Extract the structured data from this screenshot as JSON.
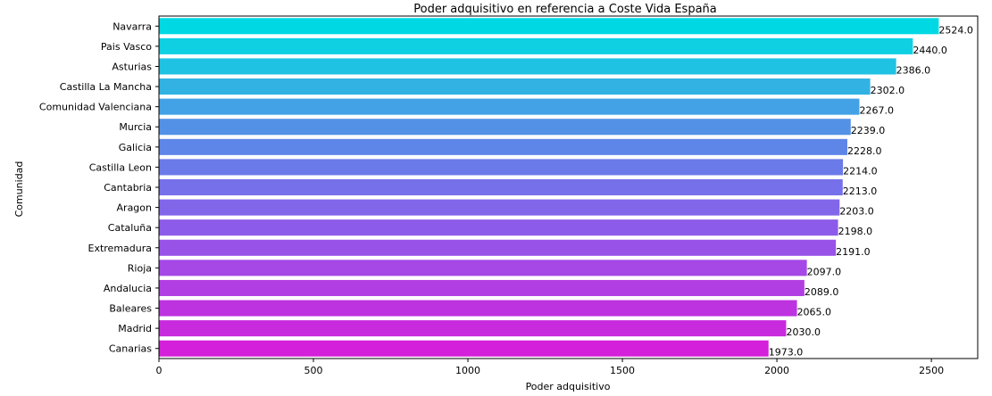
{
  "chart_data": {
    "type": "bar",
    "orientation": "horizontal",
    "title": "Poder adquisitivo en referencia a Coste Vida España",
    "xlabel": "Poder adquisitivo",
    "ylabel": "Comunidad",
    "xlim": [
      0,
      2650
    ],
    "xticks": [
      0,
      500,
      1000,
      1500,
      2000,
      2500
    ],
    "grid": false,
    "categories": [
      "Navarra",
      "Pais Vasco",
      "Asturias",
      "Castilla La Mancha",
      "Comunidad Valenciana",
      "Murcia",
      "Galicia",
      "Castilla Leon",
      "Cantabria",
      "Aragon",
      "Cataluña",
      "Extremadura",
      "Rioja",
      "Andalucia",
      "Baleares",
      "Madrid",
      "Canarias"
    ],
    "values": [
      2524,
      2440,
      2386,
      2302,
      2267,
      2239,
      2228,
      2214,
      2213,
      2203,
      2198,
      2191,
      2097,
      2089,
      2065,
      2030,
      1973
    ],
    "value_labels": [
      "2524.0",
      "2440.0",
      "2386.0",
      "2302.0",
      "2267.0",
      "2239.0",
      "2228.0",
      "2214.0",
      "2213.0",
      "2203.0",
      "2198.0",
      "2191.0",
      "2097.0",
      "2089.0",
      "2065.0",
      "2030.0",
      "1973.0"
    ],
    "colors": [
      "#00d9e3",
      "#0fd0e3",
      "#1fc2e3",
      "#31b2e3",
      "#43a2e5",
      "#5291e6",
      "#5e86e8",
      "#6b7ae9",
      "#7670ea",
      "#8266ea",
      "#8d5be9",
      "#9852e8",
      "#a548e6",
      "#b13ee3",
      "#bd33e0",
      "#c82bdd",
      "#d420da"
    ]
  }
}
